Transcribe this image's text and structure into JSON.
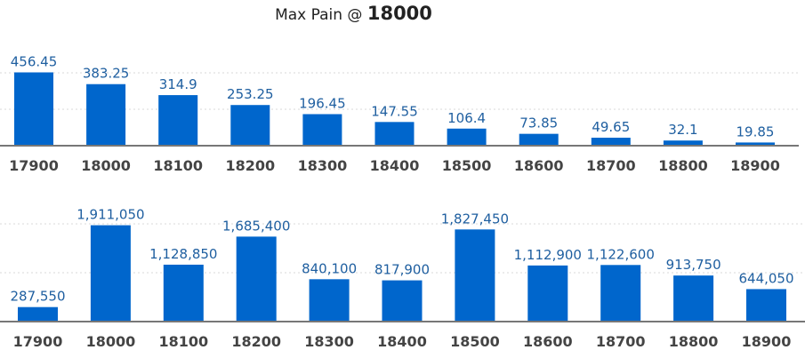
{
  "header": {
    "title_prefix": "Max Pain @",
    "title_value": "18000"
  },
  "chart_data": [
    {
      "type": "bar",
      "categories": [
        "17900",
        "18000",
        "18100",
        "18200",
        "18300",
        "18400",
        "18500",
        "18600",
        "18700",
        "18800",
        "18900"
      ],
      "values": [
        456.45,
        383.25,
        314.9,
        253.25,
        196.45,
        147.55,
        106.4,
        73.85,
        49.65,
        32.1,
        19.85
      ],
      "labels": [
        "456.45",
        "383.25",
        "314.9",
        "253.25",
        "196.45",
        "147.55",
        "106.4",
        "73.85",
        "49.65",
        "32.1",
        "19.85"
      ],
      "color": "#0066cc",
      "ylim": [
        0,
        520
      ],
      "grid": true
    },
    {
      "type": "bar",
      "categories": [
        "17900",
        "18000",
        "18100",
        "18200",
        "18300",
        "18400",
        "18500",
        "18600",
        "18700",
        "18800",
        "18900"
      ],
      "values": [
        287550,
        1911050,
        1128850,
        1685400,
        840100,
        817900,
        1827450,
        1112900,
        1122600,
        913750,
        644050
      ],
      "labels": [
        "287,550",
        "1,911,050",
        "1,128,850",
        "1,685,400",
        "840,100",
        "817,900",
        "1,827,450",
        "1,112,900",
        "1,122,600",
        "913,750",
        "644,050"
      ],
      "color": "#0066cc",
      "ylim": [
        0,
        2150000
      ],
      "grid": true
    }
  ]
}
